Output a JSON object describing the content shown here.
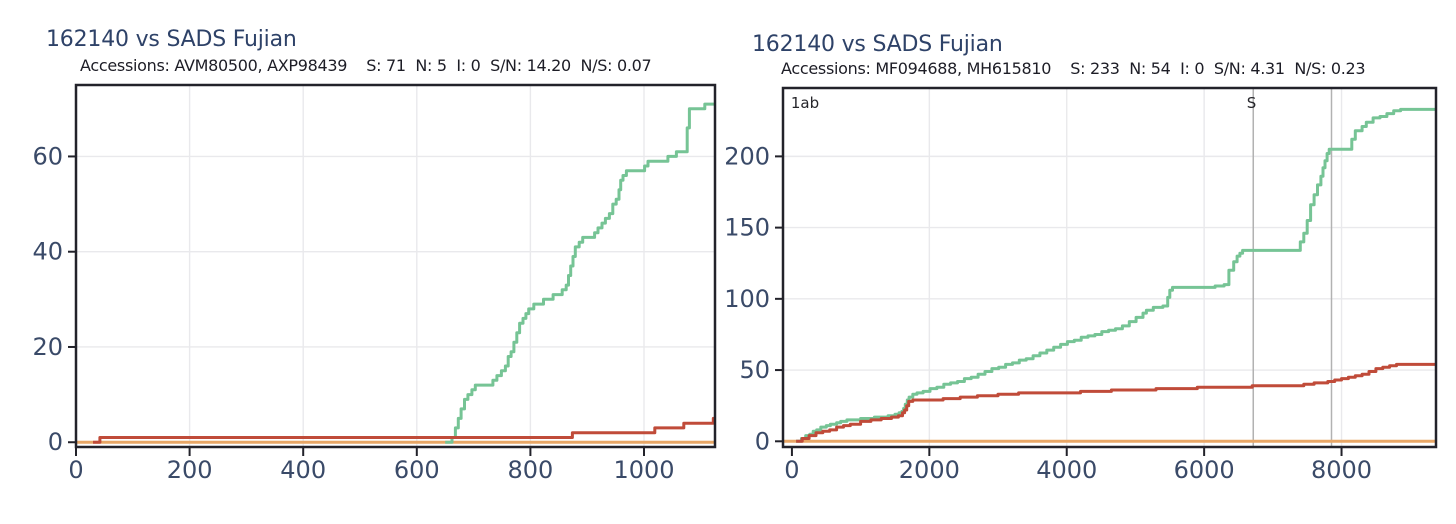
{
  "page": {
    "background": "#ffffff"
  },
  "colors": {
    "synonymous": "#76c495",
    "nonsynonymous": "#c04b39",
    "indel": "#e8a767",
    "title": "#2e4268",
    "subtitle": "#1d1d26",
    "tick_label": "#3a4a68",
    "axis": "#22222a",
    "grid": "#e9e9ec",
    "region_line": "#b2b2b2",
    "region_label": "#26262b"
  },
  "chart_data": [
    {
      "type": "line",
      "title": "162140 vs SADS Fujian",
      "subtitle": "Accessions: AVM80500, AXP98439    S: 71  N: 5  I: 0  S/N: 14.20  N/S: 0.07",
      "accessions": [
        "AVM80500",
        "AXP98439"
      ],
      "stats": {
        "S": 71,
        "N": 5,
        "I": 0,
        "S/N": "14.20",
        "N/S": "0.07"
      },
      "xlim": [
        0,
        1125
      ],
      "ylim": [
        -1,
        75
      ],
      "x_ticks": [
        0,
        200,
        400,
        600,
        800,
        1000
      ],
      "y_ticks": [
        0,
        20,
        40,
        60
      ],
      "grid": true,
      "legend": "none",
      "annotations": {
        "region_labels": [],
        "vlines": []
      },
      "series": [
        {
          "name": "indel",
          "color_key": "indel",
          "points": [
            [
              0,
              0
            ],
            [
              1125,
              0
            ]
          ]
        },
        {
          "name": "synonymous",
          "color_key": "synonymous",
          "points": [
            [
              650,
              0
            ],
            [
              662,
              1
            ],
            [
              668,
              3
            ],
            [
              673,
              5
            ],
            [
              678,
              7
            ],
            [
              684,
              9
            ],
            [
              690,
              10
            ],
            [
              697,
              11
            ],
            [
              703,
              12
            ],
            [
              728,
              12
            ],
            [
              734,
              13
            ],
            [
              741,
              14
            ],
            [
              749,
              15
            ],
            [
              756,
              16
            ],
            [
              761,
              18
            ],
            [
              766,
              19
            ],
            [
              771,
              21
            ],
            [
              776,
              23
            ],
            [
              781,
              25
            ],
            [
              787,
              26
            ],
            [
              792,
              27
            ],
            [
              797,
              28
            ],
            [
              806,
              29
            ],
            [
              817,
              29
            ],
            [
              823,
              30
            ],
            [
              833,
              30
            ],
            [
              840,
              31
            ],
            [
              856,
              32
            ],
            [
              863,
              33
            ],
            [
              867,
              35
            ],
            [
              871,
              37
            ],
            [
              875,
              39
            ],
            [
              879,
              41
            ],
            [
              886,
              42
            ],
            [
              892,
              43
            ],
            [
              906,
              43
            ],
            [
              913,
              44
            ],
            [
              919,
              45
            ],
            [
              926,
              46
            ],
            [
              932,
              47
            ],
            [
              939,
              48
            ],
            [
              945,
              50
            ],
            [
              951,
              51
            ],
            [
              956,
              53
            ],
            [
              959,
              55
            ],
            [
              963,
              56
            ],
            [
              969,
              57
            ],
            [
              996,
              57
            ],
            [
              1001,
              58
            ],
            [
              1007,
              59
            ],
            [
              1014,
              59
            ],
            [
              1042,
              60
            ],
            [
              1052,
              60
            ],
            [
              1057,
              61
            ],
            [
              1071,
              61
            ],
            [
              1076,
              66
            ],
            [
              1080,
              70
            ],
            [
              1101,
              70
            ],
            [
              1107,
              71
            ],
            [
              1125,
              71
            ]
          ]
        },
        {
          "name": "nonsynonymous",
          "color_key": "nonsynonymous",
          "points": [
            [
              30,
              0
            ],
            [
              42,
              1
            ],
            [
              866,
              1
            ],
            [
              874,
              2
            ],
            [
              1011,
              2
            ],
            [
              1019,
              3
            ],
            [
              1062,
              3
            ],
            [
              1070,
              4
            ],
            [
              1117,
              4
            ],
            [
              1122,
              5
            ],
            [
              1125,
              5
            ]
          ]
        }
      ]
    },
    {
      "type": "line",
      "title": "162140 vs SADS Fujian",
      "subtitle": "Accessions: MF094688, MH615810    S: 233  N: 54  I: 0  S/N: 4.31  N/S: 0.23",
      "accessions": [
        "MF094688",
        "MH615810"
      ],
      "stats": {
        "S": 233,
        "N": 54,
        "I": 0,
        "S/N": "4.31",
        "N/S": "0.23"
      },
      "xlim": [
        -130,
        9375
      ],
      "ylim": [
        -4,
        248
      ],
      "x_ticks": [
        0,
        2000,
        4000,
        6000,
        8000
      ],
      "y_ticks": [
        0,
        50,
        100,
        150,
        200
      ],
      "grid": true,
      "legend": "none",
      "annotations": {
        "region_labels": [
          {
            "text": "1ab",
            "x": -15,
            "anchor": "start"
          },
          {
            "text": "S",
            "x": 6690,
            "anchor": "middle"
          }
        ],
        "vlines": [
          6715,
          7854
        ]
      },
      "series": [
        {
          "name": "indel",
          "color_key": "indel",
          "points": [
            [
              -130,
              0
            ],
            [
              9375,
              0
            ]
          ]
        },
        {
          "name": "synonymous",
          "color_key": "synonymous",
          "points": [
            [
              60,
              0
            ],
            [
              140,
              2
            ],
            [
              200,
              4
            ],
            [
              260,
              5
            ],
            [
              310,
              7
            ],
            [
              360,
              8
            ],
            [
              420,
              10
            ],
            [
              500,
              11
            ],
            [
              560,
              12
            ],
            [
              650,
              13
            ],
            [
              710,
              14
            ],
            [
              800,
              15
            ],
            [
              1000,
              16
            ],
            [
              1200,
              17
            ],
            [
              1400,
              18
            ],
            [
              1500,
              19
            ],
            [
              1560,
              20
            ],
            [
              1600,
              21
            ],
            [
              1625,
              23
            ],
            [
              1650,
              26
            ],
            [
              1680,
              29
            ],
            [
              1705,
              31
            ],
            [
              1760,
              33
            ],
            [
              1820,
              34
            ],
            [
              1910,
              35
            ],
            [
              2010,
              37
            ],
            [
              2110,
              38
            ],
            [
              2210,
              40
            ],
            [
              2310,
              41
            ],
            [
              2410,
              42
            ],
            [
              2510,
              44
            ],
            [
              2610,
              45
            ],
            [
              2710,
              47
            ],
            [
              2810,
              49
            ],
            [
              2910,
              51
            ],
            [
              3010,
              52
            ],
            [
              3110,
              54
            ],
            [
              3210,
              55
            ],
            [
              3310,
              57
            ],
            [
              3410,
              58
            ],
            [
              3510,
              60
            ],
            [
              3610,
              62
            ],
            [
              3710,
              64
            ],
            [
              3810,
              66
            ],
            [
              3910,
              68
            ],
            [
              4010,
              70
            ],
            [
              4110,
              71
            ],
            [
              4210,
              73
            ],
            [
              4310,
              74
            ],
            [
              4410,
              75
            ],
            [
              4510,
              77
            ],
            [
              4610,
              78
            ],
            [
              4710,
              79
            ],
            [
              4810,
              81
            ],
            [
              4910,
              84
            ],
            [
              5010,
              87
            ],
            [
              5110,
              90
            ],
            [
              5160,
              92
            ],
            [
              5260,
              94
            ],
            [
              5400,
              95
            ],
            [
              5470,
              101
            ],
            [
              5500,
              106
            ],
            [
              5540,
              108
            ],
            [
              6100,
              108
            ],
            [
              6160,
              109
            ],
            [
              6290,
              110
            ],
            [
              6360,
              120
            ],
            [
              6430,
              126
            ],
            [
              6480,
              130
            ],
            [
              6520,
              132
            ],
            [
              6560,
              134
            ],
            [
              7350,
              134
            ],
            [
              7400,
              140
            ],
            [
              7450,
              146
            ],
            [
              7500,
              155
            ],
            [
              7550,
              166
            ],
            [
              7600,
              173
            ],
            [
              7650,
              180
            ],
            [
              7700,
              186
            ],
            [
              7730,
              192
            ],
            [
              7760,
              197
            ],
            [
              7790,
              202
            ],
            [
              7820,
              205
            ],
            [
              8100,
              205
            ],
            [
              8150,
              212
            ],
            [
              8200,
              218
            ],
            [
              8300,
              221
            ],
            [
              8360,
              224
            ],
            [
              8460,
              227
            ],
            [
              8560,
              228
            ],
            [
              8660,
              230
            ],
            [
              8760,
              232
            ],
            [
              8860,
              233
            ],
            [
              9375,
              233
            ]
          ]
        },
        {
          "name": "nonsynonymous",
          "color_key": "nonsynonymous",
          "points": [
            [
              60,
              0
            ],
            [
              150,
              2
            ],
            [
              250,
              4
            ],
            [
              350,
              6
            ],
            [
              450,
              7
            ],
            [
              550,
              8
            ],
            [
              650,
              10
            ],
            [
              750,
              11
            ],
            [
              850,
              12
            ],
            [
              1000,
              14
            ],
            [
              1150,
              15
            ],
            [
              1300,
              16
            ],
            [
              1450,
              17
            ],
            [
              1550,
              18
            ],
            [
              1610,
              20
            ],
            [
              1640,
              22
            ],
            [
              1670,
              25
            ],
            [
              1700,
              28
            ],
            [
              1760,
              29
            ],
            [
              2200,
              30
            ],
            [
              2450,
              31
            ],
            [
              2700,
              32
            ],
            [
              3000,
              33
            ],
            [
              3300,
              34
            ],
            [
              4200,
              35
            ],
            [
              4650,
              36
            ],
            [
              5300,
              37
            ],
            [
              5900,
              38
            ],
            [
              6700,
              39
            ],
            [
              7450,
              40
            ],
            [
              7600,
              41
            ],
            [
              7800,
              42
            ],
            [
              7900,
              43
            ],
            [
              8000,
              44
            ],
            [
              8100,
              45
            ],
            [
              8200,
              46
            ],
            [
              8300,
              47
            ],
            [
              8400,
              49
            ],
            [
              8500,
              51
            ],
            [
              8600,
              52
            ],
            [
              8700,
              53
            ],
            [
              8800,
              54
            ],
            [
              9375,
              54
            ]
          ]
        }
      ]
    }
  ]
}
